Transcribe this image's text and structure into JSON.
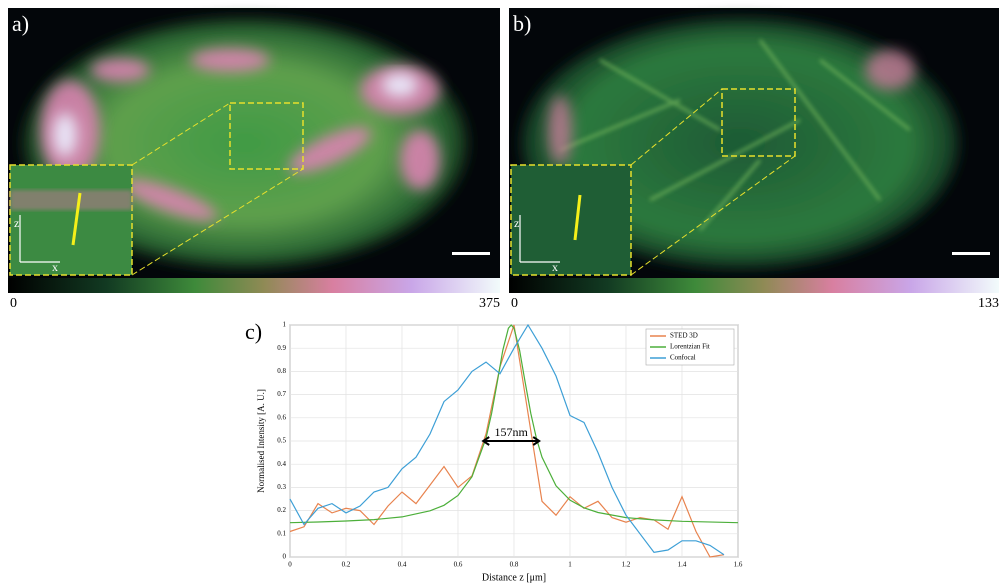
{
  "panels": [
    {
      "label": "a)",
      "colorbar": [
        0,
        375
      ],
      "axes": [
        "z",
        "x"
      ]
    },
    {
      "label": "b)",
      "colorbar": [
        0,
        133
      ],
      "axes": [
        "z",
        "x"
      ]
    }
  ],
  "chart_data": {
    "type": "line",
    "panel_label": "c)",
    "xlabel": "Distance z [μm]",
    "ylabel": "Normalised Intensity [A. U.]",
    "xlim": [
      0,
      1.6
    ],
    "xticks": [
      0,
      0.2,
      0.4,
      0.6,
      0.8,
      1,
      1.2,
      1.4,
      1.6
    ],
    "ylim": [
      0,
      1
    ],
    "yticks": [
      0,
      0.1,
      0.2,
      0.3,
      0.4,
      0.5,
      0.6,
      0.7,
      0.8,
      0.9,
      1
    ],
    "grid": true,
    "legend": "upper right",
    "annotation": "157nm",
    "series": [
      {
        "name": "STED 3D",
        "color": "#e8834e",
        "x": [
          0,
          0.05,
          0.1,
          0.15,
          0.2,
          0.25,
          0.3,
          0.35,
          0.4,
          0.45,
          0.5,
          0.55,
          0.6,
          0.65,
          0.7,
          0.75,
          0.8,
          0.85,
          0.9,
          0.95,
          1,
          1.05,
          1.1,
          1.15,
          1.2,
          1.25,
          1.3,
          1.35,
          1.4,
          1.45,
          1.5,
          1.55
        ],
        "values": [
          0.11,
          0.13,
          0.23,
          0.19,
          0.21,
          0.2,
          0.14,
          0.22,
          0.28,
          0.23,
          0.31,
          0.39,
          0.3,
          0.35,
          0.53,
          0.82,
          1.0,
          0.62,
          0.24,
          0.18,
          0.26,
          0.21,
          0.24,
          0.17,
          0.15,
          0.17,
          0.16,
          0.12,
          0.26,
          0.11,
          0.0,
          0.01
        ]
      },
      {
        "name": "Lorentzian Fit",
        "color": "#4caf3a",
        "x": [
          0,
          0.1,
          0.2,
          0.3,
          0.4,
          0.5,
          0.55,
          0.6,
          0.65,
          0.7,
          0.72,
          0.74,
          0.76,
          0.78,
          0.79,
          0.8,
          0.82,
          0.84,
          0.86,
          0.88,
          0.9,
          0.95,
          1,
          1.05,
          1.1,
          1.2,
          1.3,
          1.4,
          1.6
        ],
        "values": [
          0.148,
          0.151,
          0.155,
          0.161,
          0.173,
          0.199,
          0.223,
          0.265,
          0.346,
          0.512,
          0.619,
          0.752,
          0.891,
          0.986,
          1.0,
          0.986,
          0.891,
          0.752,
          0.619,
          0.512,
          0.43,
          0.307,
          0.245,
          0.212,
          0.192,
          0.17,
          0.16,
          0.154,
          0.148
        ]
      },
      {
        "name": "Confocal",
        "color": "#3d9fd6",
        "x": [
          0,
          0.05,
          0.1,
          0.15,
          0.2,
          0.25,
          0.3,
          0.35,
          0.4,
          0.45,
          0.5,
          0.55,
          0.6,
          0.65,
          0.7,
          0.75,
          0.8,
          0.85,
          0.9,
          0.95,
          1,
          1.05,
          1.1,
          1.15,
          1.2,
          1.25,
          1.3,
          1.35,
          1.4,
          1.45,
          1.5,
          1.55
        ],
        "values": [
          0.25,
          0.14,
          0.21,
          0.23,
          0.19,
          0.22,
          0.28,
          0.3,
          0.38,
          0.43,
          0.53,
          0.67,
          0.72,
          0.8,
          0.84,
          0.79,
          0.9,
          1.0,
          0.9,
          0.78,
          0.61,
          0.58,
          0.45,
          0.3,
          0.18,
          0.1,
          0.02,
          0.03,
          0.07,
          0.07,
          0.05,
          0.01
        ]
      }
    ]
  }
}
